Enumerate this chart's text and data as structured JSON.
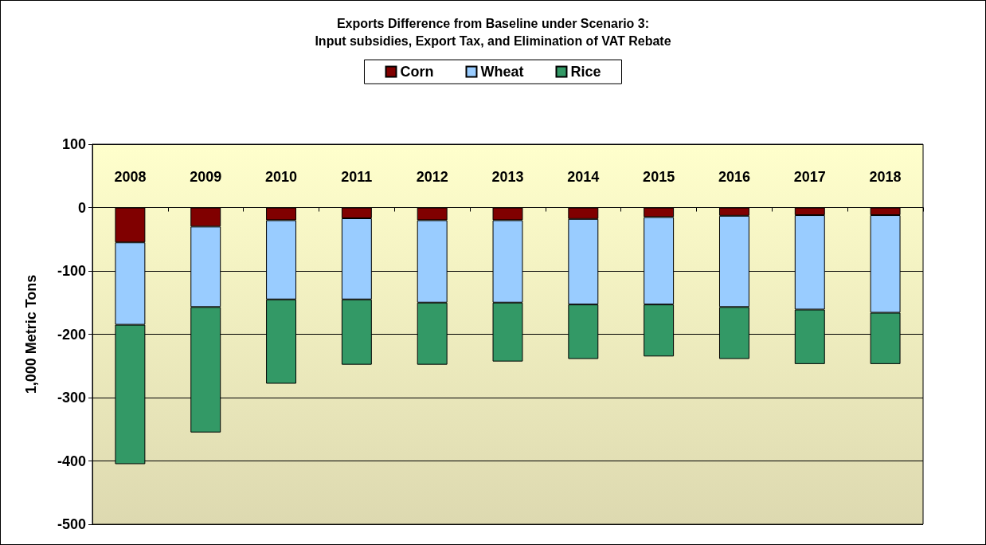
{
  "chart_data": {
    "type": "bar",
    "title": "Exports Difference from Baseline under Scenario 3:\nInput subsidies, Export Tax, and Elimination of VAT Rebate",
    "ylabel": "1,000 Metric Tons",
    "categories": [
      "2008",
      "2009",
      "2010",
      "2011",
      "2012",
      "2013",
      "2014",
      "2015",
      "2016",
      "2017",
      "2018"
    ],
    "stacked": true,
    "series": [
      {
        "name": "Corn",
        "color": "#800000",
        "values": [
          -55,
          -30,
          -20,
          -17,
          -20,
          -20,
          -18,
          -15,
          -13,
          -12,
          -12
        ]
      },
      {
        "name": "Wheat",
        "color": "#99ccff",
        "values": [
          -130,
          -127,
          -125,
          -128,
          -130,
          -130,
          -135,
          -138,
          -144,
          -149,
          -154
        ]
      },
      {
        "name": "Rice",
        "color": "#339966",
        "values": [
          -220,
          -198,
          -133,
          -103,
          -98,
          -93,
          -86,
          -82,
          -82,
          -86,
          -81
        ]
      }
    ],
    "ylim": [
      -500,
      100
    ],
    "yticks": [
      -500,
      -400,
      -300,
      -200,
      -100,
      0,
      100
    ],
    "grid": "y",
    "legend": "top"
  }
}
